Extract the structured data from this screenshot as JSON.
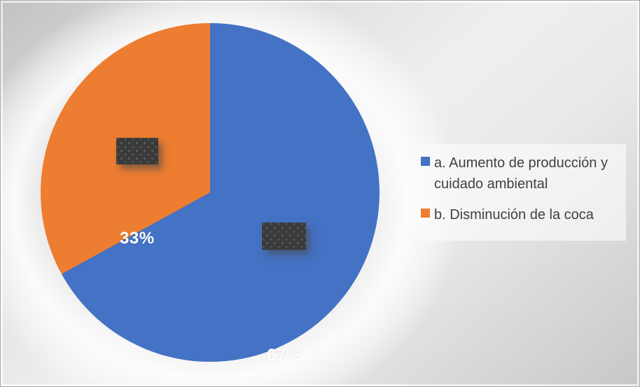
{
  "chart_data": {
    "type": "pie",
    "title": "",
    "legend_position": "right",
    "start_angle_deg": 0,
    "direction": "clockwise",
    "categories": [
      "a. Aumento de producción y cuidado ambiental",
      "b. Disminución de la coca"
    ],
    "values": [
      67,
      33
    ],
    "slices": [
      {
        "label": "a. Aumento de producción y cuidado ambiental",
        "value": 67,
        "percent_label": "67%",
        "color": "#4472C4"
      },
      {
        "label": "b. Disminución de la coca",
        "value": 33,
        "percent_label": "33%",
        "color": "#ED7D31"
      }
    ]
  },
  "legend": {
    "items": [
      {
        "label": "a. Aumento de producción y cuidado ambiental",
        "color": "#4472C4"
      },
      {
        "label": "b. Disminución de la coca",
        "color": "#ED7D31"
      }
    ]
  },
  "colors": {
    "slice_blue": "#4472C4",
    "slice_orange": "#ED7D31",
    "legend_text": "#404040",
    "percent_text": "#ffffff",
    "redaction_box": "#3a3a3a"
  }
}
